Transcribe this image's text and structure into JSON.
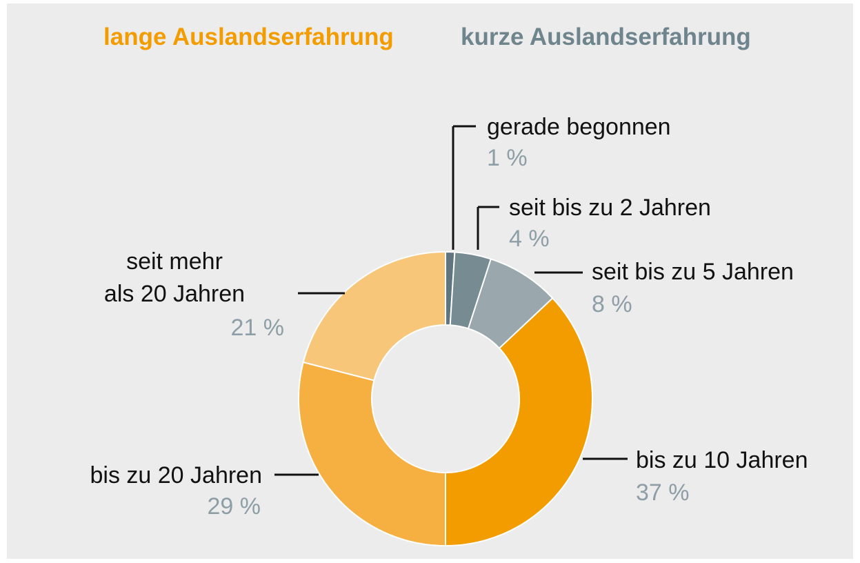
{
  "chart_data": {
    "type": "donut",
    "legend": [
      {
        "name": "lange Auslandserfahrung",
        "color": "#f39c00"
      },
      {
        "name": "kurze Auslandserfahrung",
        "color": "#6f858e"
      }
    ],
    "categories": [
      "gerade begonnen",
      "seit bis zu 2 Jahren",
      "seit bis zu 5 Jahren",
      "bis zu 10 Jahren",
      "bis zu 20 Jahren",
      "seit mehr\nals 20 Jahren"
    ],
    "values": [
      1,
      4,
      8,
      37,
      29,
      21
    ],
    "value_labels": [
      "1 %",
      "4 %",
      "8 %",
      "37 %",
      "29 %",
      "21 %"
    ],
    "colors": [
      "#5f7580",
      "#778b93",
      "#9aa8ae",
      "#f39c00",
      "#f6b042",
      "#f8c679"
    ]
  }
}
